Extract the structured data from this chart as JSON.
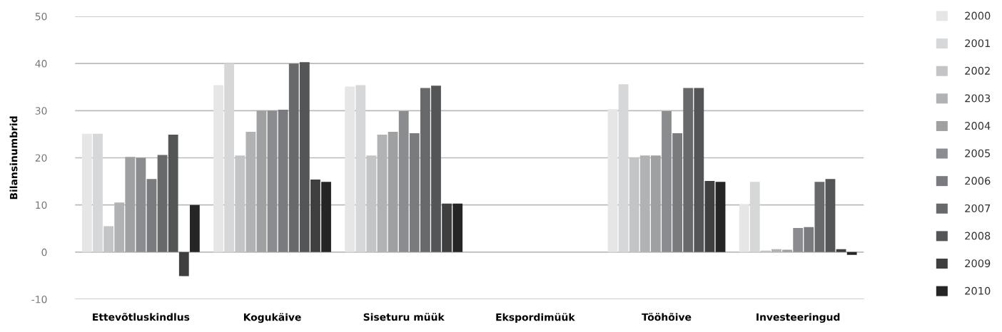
{
  "chart_data": {
    "type": "bar",
    "ylabel": "Bilansinumbrid",
    "categories": [
      "Ettevõtluskindlus",
      "Kogukäive",
      "Siseturu müük",
      "Ekspordimüük",
      "Tööhõive",
      "Investeeringud"
    ],
    "series": [
      {
        "name": "2000",
        "color": "#e6e6e6",
        "values": [
          25.1,
          35.4,
          35.1,
          null,
          30.3,
          10.1
        ]
      },
      {
        "name": "2001",
        "color": "#d6d7d9",
        "values": [
          25.1,
          40,
          35.4,
          null,
          35.6,
          14.9
        ]
      },
      {
        "name": "2002",
        "color": "#c3c4c6",
        "values": [
          5.5,
          20.5,
          20.5,
          null,
          20,
          0.3
        ]
      },
      {
        "name": "2003",
        "color": "#b1b2b4",
        "values": [
          10.5,
          25.5,
          24.9,
          null,
          20.5,
          0.6
        ]
      },
      {
        "name": "2004",
        "color": "#9fa0a2",
        "values": [
          20.2,
          30,
          25.5,
          null,
          20.5,
          0.5
        ]
      },
      {
        "name": "2005",
        "color": "#8b8c8f",
        "values": [
          20,
          30,
          29.9,
          null,
          29.9,
          5.1
        ]
      },
      {
        "name": "2006",
        "color": "#7a7b7e",
        "values": [
          15.5,
          30.2,
          25.2,
          null,
          25.2,
          5.3
        ]
      },
      {
        "name": "2007",
        "color": "#68696b",
        "values": [
          20.6,
          40,
          34.8,
          null,
          34.8,
          14.9
        ]
      },
      {
        "name": "2008",
        "color": "#545557",
        "values": [
          24.9,
          40.3,
          35.3,
          null,
          34.8,
          15.5
        ]
      },
      {
        "name": "2009",
        "color": "#3f3f3f",
        "values": [
          -5.1,
          15.4,
          10.3,
          null,
          15.1,
          0.6
        ]
      },
      {
        "name": "2010",
        "color": "#262526",
        "values": [
          10,
          14.9,
          10.3,
          null,
          14.9,
          -0.6
        ]
      }
    ],
    "ylim": [
      -10,
      50
    ],
    "yticks": [
      -10,
      0,
      10,
      20,
      30,
      40,
      50
    ],
    "grid": "y",
    "legend": "right"
  }
}
